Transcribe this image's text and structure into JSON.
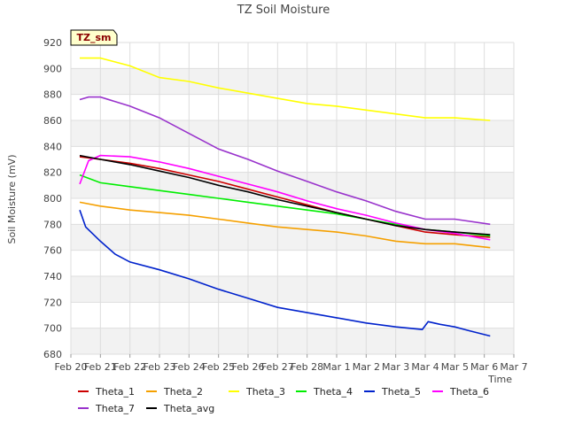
{
  "chart_data": {
    "type": "line",
    "title": "TZ Soil Moisture",
    "badge": "TZ_sm",
    "xlabel": "Time",
    "ylabel": "Soil Moisture (mV)",
    "ylim": [
      680,
      920
    ],
    "yticks": [
      680,
      700,
      720,
      740,
      760,
      780,
      800,
      820,
      840,
      860,
      880,
      900,
      920
    ],
    "xlim": [
      0,
      15
    ],
    "xticks": [
      {
        "value": 0,
        "label": "Feb 20"
      },
      {
        "value": 1,
        "label": "Feb 21"
      },
      {
        "value": 2,
        "label": "Feb 22"
      },
      {
        "value": 3,
        "label": "Feb 23"
      },
      {
        "value": 4,
        "label": "Feb 24"
      },
      {
        "value": 5,
        "label": "Feb 25"
      },
      {
        "value": 6,
        "label": "Feb 26"
      },
      {
        "value": 7,
        "label": "Feb 27"
      },
      {
        "value": 8,
        "label": "Feb 28"
      },
      {
        "value": 9,
        "label": "Mar 1"
      },
      {
        "value": 10,
        "label": "Mar 2"
      },
      {
        "value": 11,
        "label": "Mar 3"
      },
      {
        "value": 12,
        "label": "Mar 4"
      },
      {
        "value": 13,
        "label": "Mar 5"
      },
      {
        "value": 14,
        "label": "Mar 6"
      },
      {
        "value": 15,
        "label": "Mar 7"
      }
    ],
    "grid": true,
    "legend_position": "bottom",
    "series": [
      {
        "name": "Theta_1",
        "color": "#cc0000",
        "x": [
          0.3,
          1,
          2,
          3,
          4,
          5,
          6,
          7,
          8,
          9,
          10,
          11,
          12,
          13,
          14.2
        ],
        "y": [
          832,
          830,
          827,
          823,
          818,
          813,
          807,
          801,
          795,
          789,
          784,
          779,
          774,
          772,
          770
        ]
      },
      {
        "name": "Theta_2",
        "color": "#f5a000",
        "x": [
          0.3,
          1,
          2,
          3,
          4,
          5,
          6,
          7,
          8,
          9,
          10,
          11,
          12,
          13,
          14.2
        ],
        "y": [
          797,
          794,
          791,
          789,
          787,
          784,
          781,
          778,
          776,
          774,
          771,
          767,
          765,
          765,
          762
        ]
      },
      {
        "name": "Theta_3",
        "color": "#ffff00",
        "x": [
          0.3,
          1,
          2,
          3,
          4,
          5,
          6,
          7,
          8,
          9,
          10,
          11,
          12,
          13,
          14.2
        ],
        "y": [
          908,
          908,
          902,
          893,
          890,
          885,
          881,
          877,
          873,
          871,
          868,
          865,
          862,
          862,
          860
        ]
      },
      {
        "name": "Theta_4",
        "color": "#00ee00",
        "x": [
          0.3,
          1,
          2,
          3,
          4,
          5,
          6,
          7,
          8,
          9,
          10,
          11,
          12,
          13,
          14.2
        ],
        "y": [
          818,
          812,
          809,
          806,
          803,
          800,
          797,
          794,
          791,
          788,
          784,
          780,
          776,
          774,
          771
        ]
      },
      {
        "name": "Theta_5",
        "color": "#0022cc",
        "x": [
          0.3,
          0.5,
          1,
          1.5,
          2,
          3,
          4,
          5,
          6,
          7,
          8,
          9,
          10,
          11,
          11.9,
          12.1,
          12.5,
          13,
          13.5,
          14.2
        ],
        "y": [
          791,
          778,
          767,
          757,
          751,
          745,
          738,
          730,
          723,
          716,
          712,
          708,
          704,
          701,
          699,
          705,
          703,
          701,
          698,
          694
        ]
      },
      {
        "name": "Theta_6",
        "color": "#ff00ff",
        "x": [
          0.3,
          0.6,
          1,
          2,
          3,
          4,
          5,
          6,
          7,
          8,
          9,
          10,
          11,
          12,
          13,
          14.2
        ],
        "y": [
          811,
          829,
          833,
          832,
          828,
          823,
          817,
          811,
          805,
          798,
          792,
          787,
          781,
          776,
          773,
          768
        ]
      },
      {
        "name": "Theta_7",
        "color": "#9933cc",
        "x": [
          0.3,
          0.6,
          1,
          2,
          3,
          4,
          5,
          6,
          7,
          8,
          9,
          10,
          11,
          12,
          13,
          14.2
        ],
        "y": [
          876,
          878,
          878,
          871,
          862,
          850,
          838,
          830,
          821,
          813,
          805,
          798,
          790,
          784,
          784,
          780
        ]
      },
      {
        "name": "Theta_avg",
        "color": "#000000",
        "x": [
          0.3,
          1,
          2,
          3,
          4,
          5,
          6,
          7,
          8,
          9,
          10,
          11,
          12,
          13,
          14.2
        ],
        "y": [
          833,
          830,
          826,
          821,
          816,
          810,
          805,
          799,
          794,
          789,
          784,
          779,
          776,
          774,
          772
        ]
      }
    ]
  }
}
